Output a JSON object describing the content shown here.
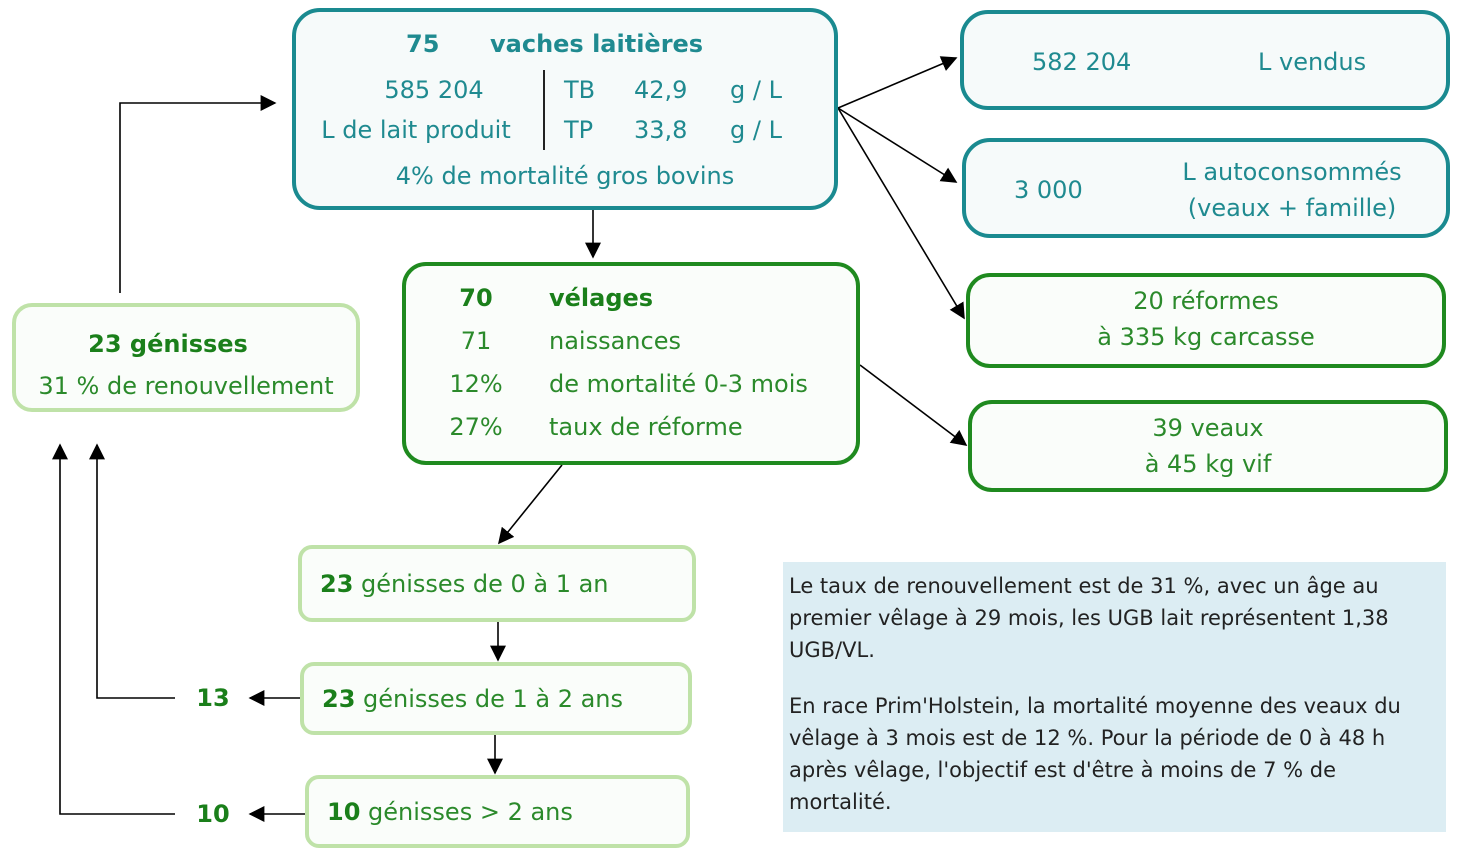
{
  "dairy_cows": {
    "count": "75",
    "label": "vaches laitières",
    "milk_volume": "585 204",
    "milk_label": "L de lait produit",
    "tb_label": "TB",
    "tb_value": "42,9",
    "tb_unit": "g / L",
    "tp_label": "TP",
    "tp_value": "33,8",
    "tp_unit": "g / L",
    "mortality": "4% de mortalité gros bovins"
  },
  "milk_sold": {
    "value": "582 204",
    "label": "L vendus"
  },
  "milk_self": {
    "value": "3 000",
    "label": "L autoconsommés",
    "sub": "(veaux + famille)"
  },
  "culls": {
    "line1": "20 réformes",
    "line2": "à 335 kg carcasse"
  },
  "calves": {
    "line1": "39 veaux",
    "line2": "à 45 kg vif"
  },
  "calvings": {
    "rows": [
      [
        "70",
        "vélages"
      ],
      [
        "71",
        "naissances"
      ],
      [
        "12%",
        "de mortalité 0-3 mois"
      ],
      [
        "27%",
        "taux de réforme"
      ]
    ]
  },
  "heifers": {
    "title": "23 génisses",
    "subtitle": "31 % de renouvellement"
  },
  "heifer_groups": [
    {
      "count": "23",
      "label": "génisses de 0 à 1 an"
    },
    {
      "count": "23",
      "label": "génisses de 1 à 2 ans",
      "out": "13"
    },
    {
      "count": "10",
      "label": "génisses > 2 ans",
      "out": "10"
    }
  ],
  "info": {
    "paragraphs": [
      "Le taux de renouvellement est de 31 %, avec un âge au premier vêlage à 29 mois, les UGB lait représentent 1,38 UGB/VL.",
      "En race Prim'Holstein, la mortalité moyenne des veaux du vêlage à 3 mois est de 12 %. Pour la période de 0 à 48 h après vêlage, l'objectif est d'être à moins de 7 % de mortalité."
    ]
  }
}
